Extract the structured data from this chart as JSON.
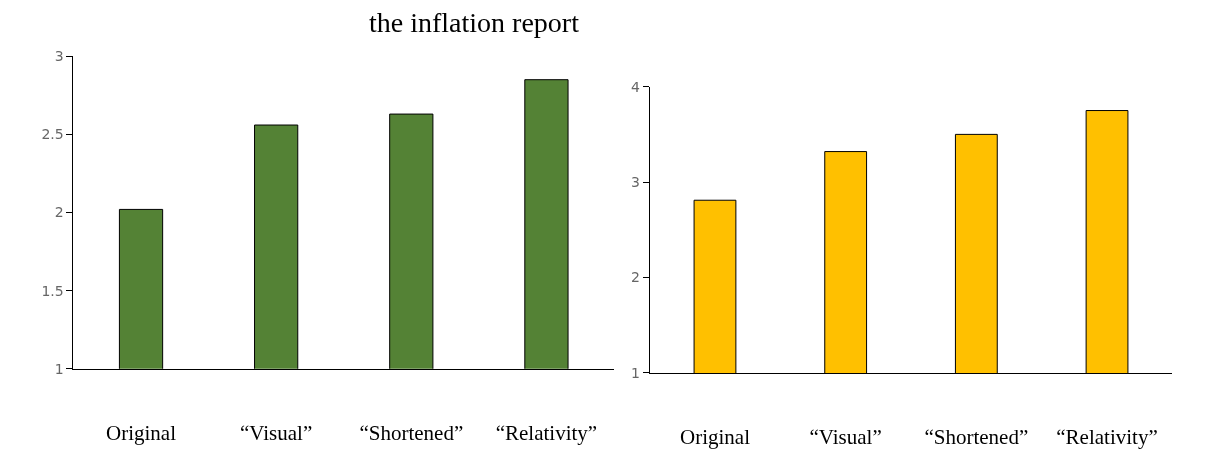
{
  "chart_data": [
    {
      "type": "bar",
      "title": "the inflation report",
      "categories": [
        "Original",
        "“Visual”",
        "“Shortened”",
        "“Relativity”"
      ],
      "values": [
        2.02,
        2.56,
        2.63,
        2.85
      ],
      "color": "#548235",
      "ylim": [
        1,
        3
      ],
      "yticks": [
        1,
        1.5,
        2,
        2.5,
        3
      ]
    },
    {
      "type": "bar",
      "categories": [
        "Original",
        "“Visual”",
        "“Shortened”",
        "“Relativity”"
      ],
      "values": [
        2.81,
        3.32,
        3.5,
        3.75
      ],
      "color": "#ffc000",
      "ylim": [
        1,
        4
      ],
      "yticks": [
        1,
        2,
        3,
        4
      ]
    }
  ]
}
